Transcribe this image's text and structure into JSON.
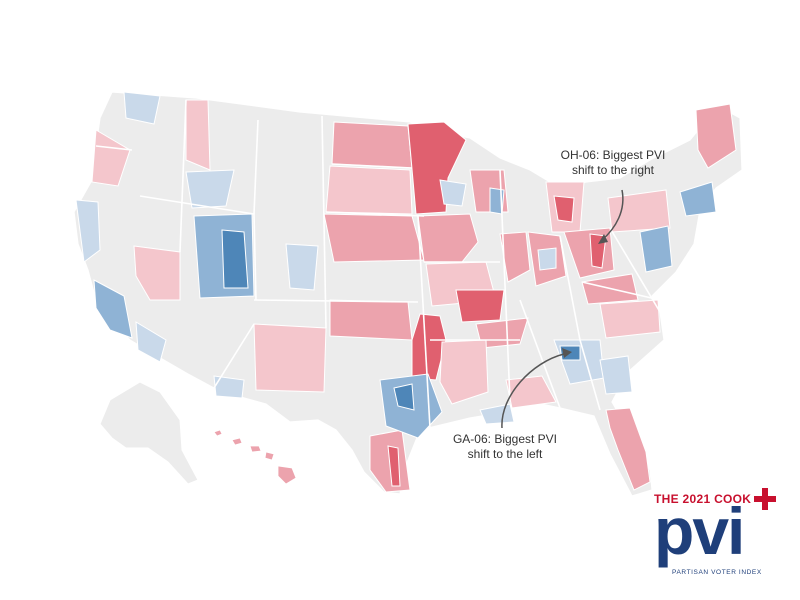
{
  "map": {
    "annotations": {
      "oh": {
        "line1": "OH-06: Biggest PVI",
        "line2": "shift to the right"
      },
      "ga": {
        "line1": "GA-06: Biggest PVI",
        "line2": "shift to the left"
      }
    },
    "colors": {
      "neutral": "#ececec",
      "red_light": "#f4c6cc",
      "red_mid": "#eca3ad",
      "red_dark": "#e0606f",
      "blue_light": "#c9d9ea",
      "blue_mid": "#8fb3d5",
      "blue_dark": "#4e86b8",
      "border": "#ffffff",
      "arrow": "#555555"
    }
  },
  "logo": {
    "title": "THE 2021 COOK",
    "brand": "pvi",
    "subtitle": "PARTISAN VOTER INDEX",
    "brand_color": "#1f3f7a",
    "accent_color": "#c8102e"
  }
}
